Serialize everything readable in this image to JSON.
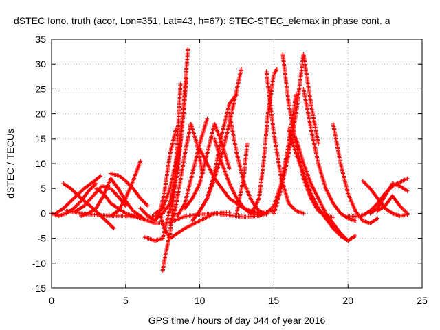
{
  "chart_data": {
    "type": "scatter",
    "title": "dSTEC Iono. truth (acor, Lon=351, Lat=43, h=67): STEC-STEC_elemax in phase cont. a",
    "xlabel": "GPS time / hours of day 044 of year 2016",
    "ylabel": "dSTEC  / TECUs",
    "xlim": [
      0,
      25
    ],
    "ylim": [
      -15,
      35
    ],
    "xticks": [
      0,
      5,
      10,
      15,
      20,
      25
    ],
    "yticks": [
      -15,
      -10,
      -5,
      0,
      5,
      10,
      15,
      20,
      25,
      30,
      35
    ],
    "grid": true,
    "marker": "+",
    "color": "#ff0000",
    "series": [
      {
        "x": [
          0.0,
          0.5,
          1.0,
          1.5,
          2.0,
          2.5,
          3.0
        ],
        "y": [
          0.0,
          -0.5,
          0.0,
          1.0,
          2.5,
          4.5,
          6.0
        ]
      },
      {
        "x": [
          0.8,
          1.3,
          2.0,
          2.8,
          3.5,
          4.2
        ],
        "y": [
          6.0,
          5.0,
          3.0,
          1.0,
          -1.0,
          -3.0
        ]
      },
      {
        "x": [
          0.3,
          0.8,
          1.5,
          2.2,
          2.9,
          3.3
        ],
        "y": [
          0.0,
          1.0,
          3.0,
          5.0,
          6.5,
          7.5
        ]
      },
      {
        "x": [
          1.0,
          2.0,
          3.0,
          4.0,
          5.0,
          6.0
        ],
        "y": [
          0.5,
          0.0,
          -0.3,
          -0.5,
          -0.5,
          -0.6
        ]
      },
      {
        "x": [
          1.5,
          2.2,
          2.8,
          3.4,
          4.0,
          4.6,
          5.0
        ],
        "y": [
          0.2,
          1.5,
          3.5,
          5.5,
          5.0,
          3.0,
          1.5
        ]
      },
      {
        "x": [
          2.0,
          2.5,
          3.0,
          3.5,
          4.0,
          4.5,
          5.0,
          5.5,
          6.2
        ],
        "y": [
          -0.5,
          0.0,
          1.0,
          3.5,
          7.0,
          5.0,
          2.5,
          0.5,
          -1.0
        ]
      },
      {
        "x": [
          3.0,
          3.5,
          4.0,
          5.0,
          6.0,
          7.0,
          7.5
        ],
        "y": [
          5.0,
          4.0,
          2.0,
          0.0,
          -1.0,
          -2.0,
          -2.0
        ]
      },
      {
        "x": [
          4.0,
          4.5,
          5.0,
          5.5,
          6.0
        ],
        "y": [
          -0.5,
          0.5,
          3.0,
          6.5,
          10.5
        ]
      },
      {
        "x": [
          4.0,
          4.6,
          5.0,
          5.5,
          6.0,
          6.5
        ],
        "y": [
          8.0,
          7.5,
          6.5,
          5.0,
          3.0,
          1.5
        ]
      },
      {
        "x": [
          6.0,
          6.5,
          7.0,
          7.3,
          7.6,
          8.0,
          8.4
        ],
        "y": [
          1.0,
          -0.5,
          -1.5,
          0.0,
          4.0,
          12.0,
          17.0
        ]
      },
      {
        "x": [
          6.5,
          7.0,
          7.5,
          8.0,
          8.5,
          8.8,
          9.0,
          9.2
        ],
        "y": [
          -0.8,
          -0.5,
          0.0,
          2.0,
          8.0,
          17.0,
          25.0,
          33.0
        ]
      },
      {
        "x": [
          6.3,
          7.0,
          7.5,
          8.0,
          8.5,
          8.7
        ],
        "y": [
          -4.8,
          -5.5,
          -5.0,
          1.0,
          10.0,
          15.0
        ]
      },
      {
        "x": [
          7.0,
          7.5,
          8.0,
          8.5,
          8.9,
          9.1
        ],
        "y": [
          0.0,
          1.0,
          5.0,
          12.0,
          20.0,
          27.0
        ]
      },
      {
        "x": [
          7.5,
          7.7,
          8.0,
          8.3,
          8.5,
          8.7
        ],
        "y": [
          -11.5,
          -8.0,
          -4.0,
          5.0,
          15.0,
          26.0
        ]
      },
      {
        "x": [
          7.3,
          7.6,
          8.0,
          9.0,
          10.0,
          11.0,
          12.0
        ],
        "y": [
          0.0,
          -3.0,
          -5.0,
          -3.0,
          -1.5,
          0.0,
          0.2
        ]
      },
      {
        "x": [
          8.0,
          8.3,
          8.6,
          9.0,
          9.4,
          9.8,
          10.2
        ],
        "y": [
          -2.0,
          0.0,
          5.0,
          12.0,
          18.0,
          14.0,
          8.0
        ]
      },
      {
        "x": [
          8.5,
          9.0,
          9.5,
          10.0,
          10.5
        ],
        "y": [
          -0.5,
          2.0,
          8.0,
          14.0,
          19.0
        ]
      },
      {
        "x": [
          8.0,
          9.0,
          10.0,
          11.0,
          12.0,
          13.0,
          14.0
        ],
        "y": [
          -1.8,
          -0.6,
          -0.2,
          0.0,
          -0.4,
          -0.7,
          -0.5
        ]
      },
      {
        "x": [
          9.0,
          9.5,
          10.0,
          10.5,
          11.0,
          11.5,
          12.0
        ],
        "y": [
          1.0,
          3.0,
          6.0,
          12.0,
          18.0,
          14.0,
          9.0
        ]
      },
      {
        "x": [
          9.5,
          10.0,
          10.5,
          11.0,
          11.5,
          12.0,
          12.8
        ],
        "y": [
          -1.5,
          0.5,
          3.0,
          7.0,
          12.0,
          18.0,
          29.0
        ]
      },
      {
        "x": [
          10.0,
          10.5,
          11.0,
          11.5,
          12.0,
          12.5
        ],
        "y": [
          0.5,
          3.0,
          8.0,
          16.0,
          22.0,
          24.0
        ]
      },
      {
        "x": [
          10.0,
          11.0,
          12.0,
          13.0,
          14.0,
          15.0
        ],
        "y": [
          13.0,
          7.0,
          3.0,
          1.0,
          0.0,
          0.5
        ]
      },
      {
        "x": [
          11.0,
          11.5,
          12.0,
          12.5,
          13.0,
          13.5,
          14.0
        ],
        "y": [
          15.0,
          10.0,
          6.0,
          3.0,
          1.0,
          -0.2,
          -0.3
        ]
      },
      {
        "x": [
          12.0,
          12.5,
          13.0,
          13.5,
          14.0,
          14.5
        ],
        "y": [
          20.0,
          12.0,
          6.0,
          2.5,
          0.5,
          -0.2
        ]
      },
      {
        "x": [
          12.5,
          13.0,
          13.2
        ],
        "y": [
          0.0,
          8.0,
          14.0
        ]
      },
      {
        "x": [
          13.5,
          14.0,
          14.3,
          14.6,
          15.0,
          15.2
        ],
        "y": [
          0.0,
          3.0,
          10.0,
          20.0,
          28.0,
          29.0
        ]
      },
      {
        "x": [
          14.0,
          14.5,
          15.0,
          15.5,
          16.0,
          16.5
        ],
        "y": [
          -0.5,
          0.0,
          1.5,
          6.0,
          14.0,
          24.0
        ]
      },
      {
        "x": [
          14.5,
          15.0,
          15.5,
          16.0,
          16.5,
          17.0
        ],
        "y": [
          28.5,
          16.0,
          7.0,
          2.0,
          0.5,
          0.0
        ]
      },
      {
        "x": [
          15.0,
          15.5,
          16.0,
          16.5,
          17.0,
          17.5,
          18.0
        ],
        "y": [
          0.0,
          5.0,
          12.0,
          20.0,
          32.0,
          22.0,
          14.0
        ]
      },
      {
        "x": [
          15.6,
          16.0,
          16.5,
          17.0,
          17.5,
          18.0,
          18.5,
          19.0
        ],
        "y": [
          32.0,
          22.0,
          14.0,
          7.0,
          3.0,
          0.5,
          -0.5,
          -0.8
        ]
      },
      {
        "x": [
          16.0,
          16.5,
          17.0,
          17.5,
          18.0,
          18.5,
          19.0,
          19.5,
          20.0
        ],
        "y": [
          17.0,
          12.0,
          8.0,
          4.0,
          1.0,
          -1.0,
          -3.0,
          -4.5,
          -5.5
        ]
      },
      {
        "x": [
          16.5,
          17.0,
          17.5,
          18.0,
          18.5,
          19.0,
          19.5,
          20.0,
          20.5
        ],
        "y": [
          15.0,
          10.0,
          6.0,
          3.0,
          0.0,
          -2.0,
          -4.0,
          -5.5,
          -4.5
        ]
      },
      {
        "x": [
          17.0,
          17.5,
          18.0,
          18.5,
          19.0,
          19.5,
          20.0,
          20.5
        ],
        "y": [
          25.0,
          17.0,
          10.0,
          5.0,
          2.0,
          0.0,
          -1.0,
          -1.5
        ]
      },
      {
        "x": [
          19.0,
          19.5,
          20.0,
          20.5,
          21.0,
          21.5,
          22.0
        ],
        "y": [
          18.0,
          10.0,
          4.0,
          0.5,
          -1.5,
          -2.0,
          -1.0
        ]
      },
      {
        "x": [
          20.0,
          20.5,
          21.0,
          21.5,
          22.0,
          22.5,
          23.0,
          24.0
        ],
        "y": [
          -0.5,
          -0.6,
          -0.4,
          0.5,
          2.0,
          4.0,
          5.5,
          7.0
        ]
      },
      {
        "x": [
          21.0,
          21.5,
          22.0,
          22.5,
          23.0,
          23.5,
          24.0
        ],
        "y": [
          6.5,
          5.0,
          3.0,
          1.0,
          0.0,
          -0.5,
          -0.3
        ]
      },
      {
        "x": [
          21.5,
          22.0,
          22.5,
          23.0,
          23.5,
          24.0
        ],
        "y": [
          0.0,
          1.0,
          3.5,
          6.0,
          5.5,
          4.5
        ]
      },
      {
        "x": [
          22.0,
          22.5,
          23.0,
          23.5,
          24.0
        ],
        "y": [
          0.5,
          1.5,
          3.5,
          1.5,
          0.0
        ]
      }
    ]
  }
}
